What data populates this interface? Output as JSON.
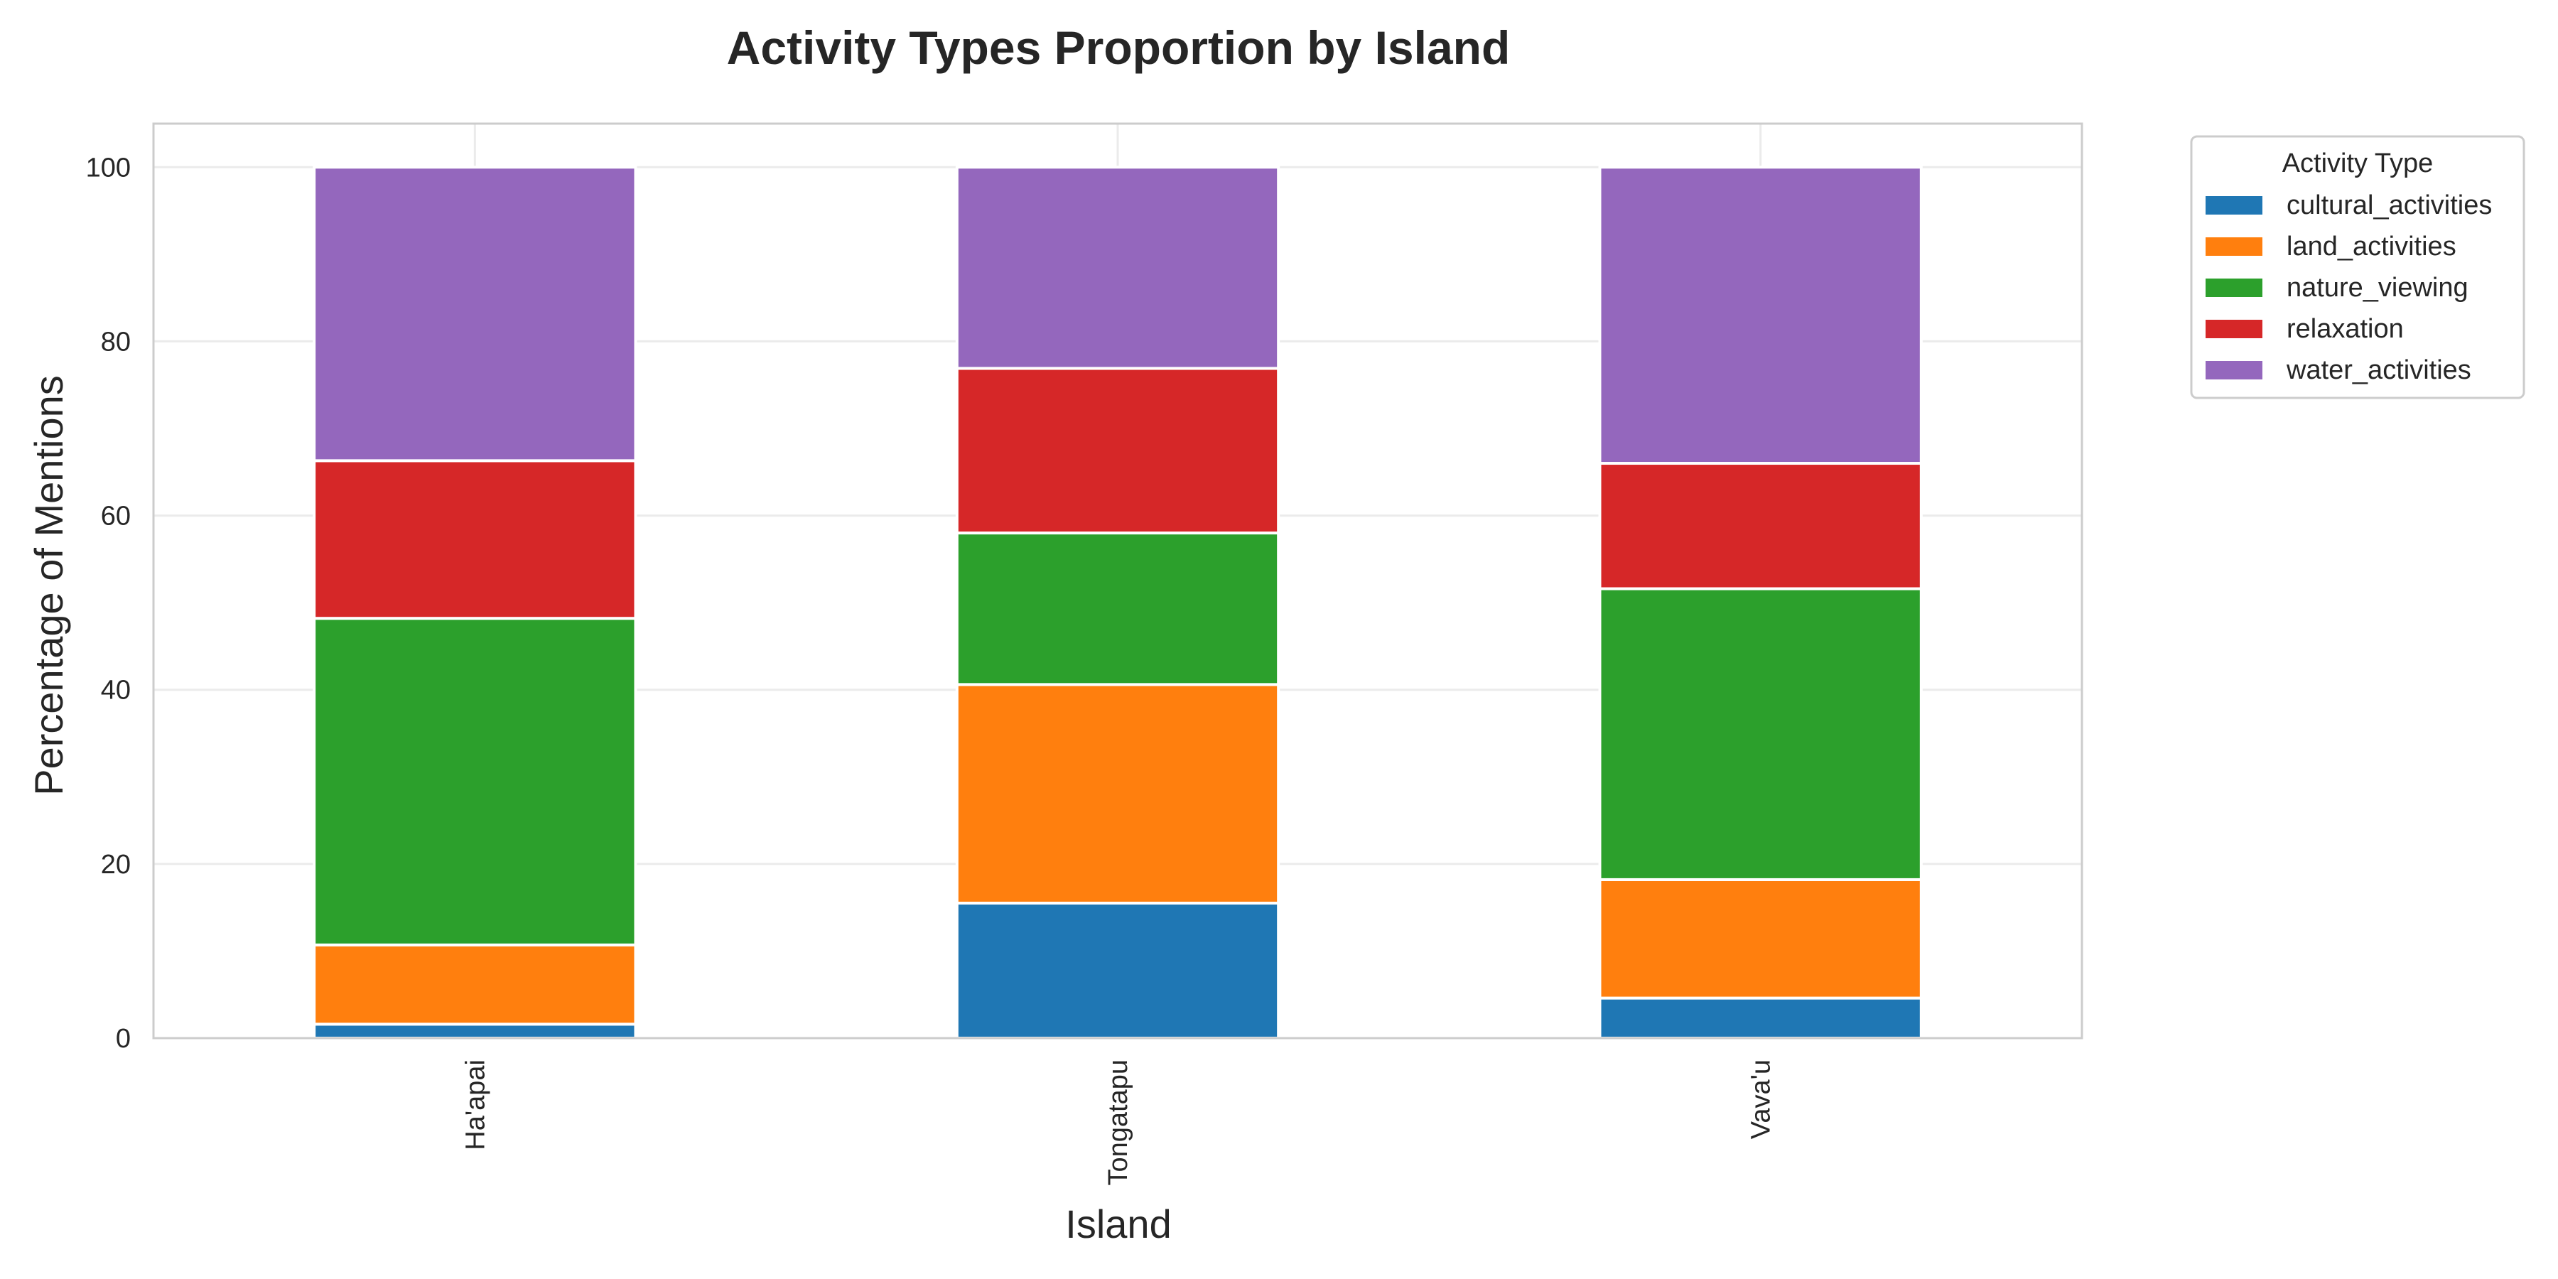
{
  "chart_data": {
    "type": "bar",
    "stacked": true,
    "title": "Activity Types Proportion by Island",
    "xlabel": "Island",
    "ylabel": "Percentage of Mentions",
    "categories": [
      "Ha'apai",
      "Tongatapu",
      "Vava'u"
    ],
    "ylim": [
      0,
      105
    ],
    "yticks": [
      0,
      20,
      40,
      60,
      80,
      100
    ],
    "grid": true,
    "legend": {
      "title": "Activity Type",
      "placement": "outside-top-right"
    },
    "series": [
      {
        "name": "cultural_activities",
        "color": "#1f77b4",
        "values": [
          1.6,
          15.5,
          4.6
        ]
      },
      {
        "name": "land_activities",
        "color": "#ff7f0e",
        "values": [
          9.1,
          25.1,
          13.6
        ]
      },
      {
        "name": "nature_viewing",
        "color": "#2ca02c",
        "values": [
          37.5,
          17.4,
          33.4
        ]
      },
      {
        "name": "relaxation",
        "color": "#d62728",
        "values": [
          18.1,
          18.9,
          14.4
        ]
      },
      {
        "name": "water_activities",
        "color": "#9467bd",
        "values": [
          33.7,
          23.1,
          34.0
        ]
      }
    ]
  }
}
